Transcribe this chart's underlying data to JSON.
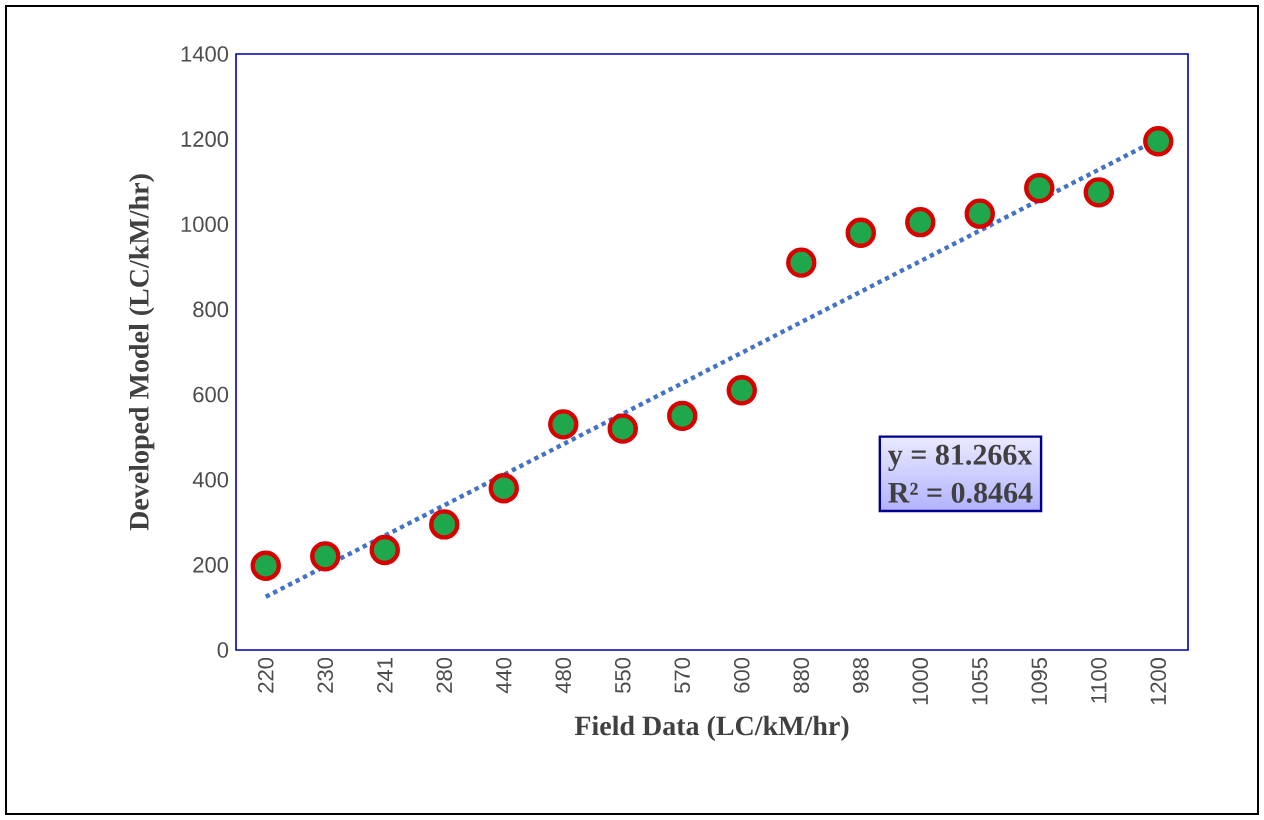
{
  "chart_data": {
    "type": "scatter",
    "xlabel": "Field Data (LC/kM/hr)",
    "ylabel": "Developed Model (LC/kM/hr)",
    "categories": [
      "220",
      "230",
      "241",
      "280",
      "440",
      "480",
      "550",
      "570",
      "600",
      "880",
      "988",
      "1000",
      "1055",
      "1095",
      "1100",
      "1200"
    ],
    "series": [
      {
        "color": "#1fa84b",
        "marker": "circle",
        "values": [
          198,
          220,
          235,
          295,
          380,
          530,
          520,
          550,
          610,
          910,
          980,
          1005,
          1025,
          1085,
          1075,
          1195
        ]
      },
      {
        "type": "line",
        "color": "#4472c4",
        "line_style": "dotted",
        "marker": "none",
        "values": [
          125,
          null,
          null,
          null,
          null,
          null,
          null,
          null,
          null,
          null,
          null,
          null,
          null,
          null,
          null,
          1200
        ]
      }
    ],
    "ylim": [
      0,
      1400
    ],
    "yticks": [
      0,
      200,
      400,
      600,
      800,
      1000,
      1200,
      1400
    ],
    "grid": false,
    "annotations": [
      "y = 81.266x",
      "R² = 0.8464"
    ]
  }
}
